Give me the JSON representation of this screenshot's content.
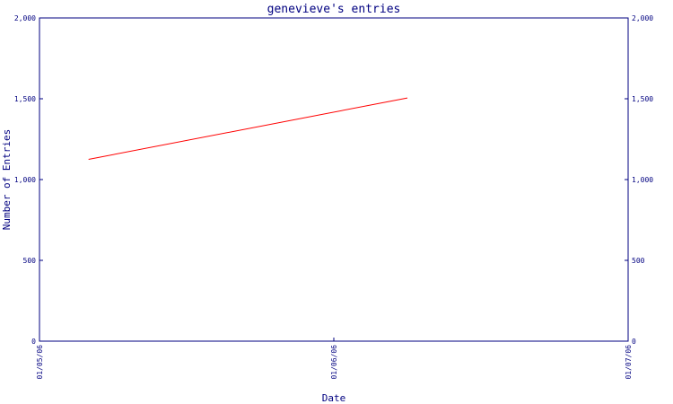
{
  "chart_data": {
    "type": "line",
    "title": "genevieve's entries",
    "xlabel": "Date",
    "ylabel": "Number of Entries",
    "x_ticks": [
      "01/05/06",
      "01/06/06",
      "01/07/06"
    ],
    "xlim": [
      "01/05/06",
      "01/07/06"
    ],
    "ylim": [
      0,
      2000
    ],
    "y_ticks": [
      0,
      500,
      1000,
      1500,
      2000
    ],
    "y_tick_labels": [
      "0",
      "500",
      "1,000",
      "1,500",
      "2,000"
    ],
    "grid": false,
    "series": [
      {
        "color": "#ff0000",
        "x": [
          "01/05/06 04:00",
          "01/06/06 06:00"
        ],
        "y": [
          1125,
          1505
        ]
      }
    ]
  },
  "colors": {
    "axis": "#000080",
    "line": "#ff0000"
  }
}
